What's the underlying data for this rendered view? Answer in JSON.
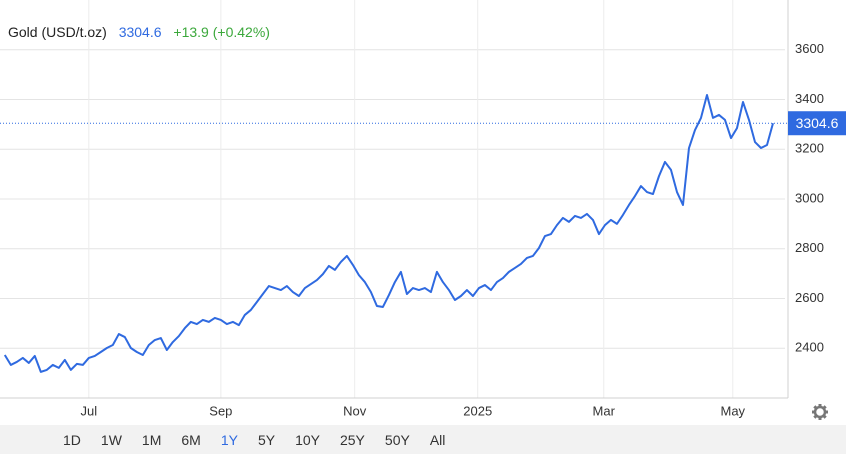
{
  "chart_data": {
    "type": "line",
    "title": "Gold (USD/t.oz)",
    "change_label": "+13.9 (+0.42%)",
    "series": [
      {
        "name": "Gold",
        "color": "#2f6ae0",
        "values": [
          2373,
          2333,
          2345,
          2361,
          2341,
          2369,
          2305,
          2313,
          2333,
          2321,
          2353,
          2313,
          2337,
          2333,
          2361,
          2369,
          2385,
          2401,
          2413,
          2457,
          2445,
          2401,
          2385,
          2373,
          2413,
          2433,
          2441,
          2393,
          2425,
          2449,
          2481,
          2506,
          2497,
          2514,
          2506,
          2522,
          2514,
          2497,
          2506,
          2493,
          2534,
          2554,
          2586,
          2618,
          2650,
          2642,
          2634,
          2650,
          2626,
          2610,
          2642,
          2658,
          2674,
          2698,
          2731,
          2715,
          2747,
          2771,
          2735,
          2694,
          2666,
          2626,
          2570,
          2566,
          2614,
          2666,
          2707,
          2618,
          2642,
          2634,
          2642,
          2626,
          2707,
          2666,
          2634,
          2594,
          2610,
          2634,
          2610,
          2642,
          2654,
          2634,
          2666,
          2682,
          2707,
          2723,
          2739,
          2763,
          2771,
          2803,
          2851,
          2859,
          2895,
          2924,
          2908,
          2932,
          2924,
          2940,
          2916,
          2859,
          2895,
          2916,
          2900,
          2936,
          2976,
          3012,
          3052,
          3028,
          3020,
          3092,
          3149,
          3117,
          3028,
          2976,
          3205,
          3277,
          3326,
          3418,
          3326,
          3338,
          3318,
          3245,
          3285,
          3390,
          3318,
          3229,
          3205,
          3217,
          3304.6
        ]
      }
    ],
    "xlim": [
      -0.8,
      130
    ],
    "xticks": [
      {
        "value": 14,
        "label": "Jul"
      },
      {
        "value": 36,
        "label": "Sep"
      },
      {
        "value": 58.3,
        "label": "Nov"
      },
      {
        "value": 78.8,
        "label": "2025"
      },
      {
        "value": 99.8,
        "label": "Mar"
      },
      {
        "value": 121.3,
        "label": "May"
      }
    ],
    "ylim": [
      2200,
      3800
    ],
    "yticks": [
      2400,
      2600,
      2800,
      3000,
      3200,
      3400,
      3600
    ],
    "grid": true
  },
  "toolbar": {
    "ranges": [
      "1D",
      "1W",
      "1M",
      "6M",
      "1Y",
      "5Y",
      "10Y",
      "25Y",
      "50Y",
      "All"
    ],
    "active_range": "1Y"
  }
}
